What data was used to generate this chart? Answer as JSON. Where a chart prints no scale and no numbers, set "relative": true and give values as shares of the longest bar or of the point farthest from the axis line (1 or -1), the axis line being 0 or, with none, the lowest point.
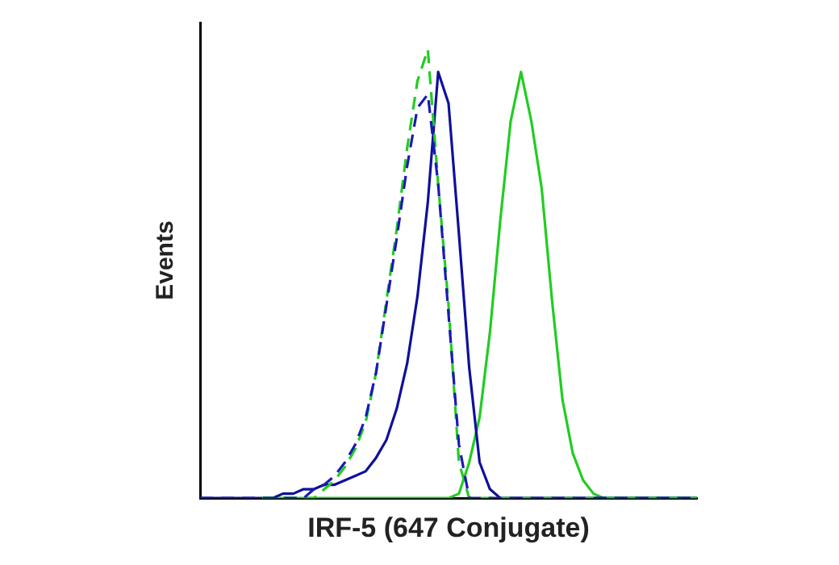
{
  "chart_data": {
    "type": "line",
    "relative": true,
    "xlabel": "IRF-5 (647 Conjugate)",
    "ylabel": "Events",
    "grid": false,
    "legend": false,
    "marker": "none",
    "categories": [
      null,
      null,
      null,
      null,
      null,
      null,
      null,
      null,
      null,
      null,
      null,
      null,
      null,
      null,
      null,
      null,
      null,
      null,
      null,
      null,
      null,
      null,
      null,
      null,
      null,
      null,
      null,
      null,
      null,
      null,
      null,
      null,
      null,
      null,
      null,
      null,
      null,
      null,
      null,
      null,
      null,
      null,
      null,
      null,
      null,
      null,
      null,
      null,
      null
    ],
    "series": [
      {
        "color": "#1a1ab4",
        "line_style": "dashed",
        "values": [
          0,
          0,
          0,
          0,
          0,
          0,
          0,
          0,
          0,
          0,
          0,
          0.02,
          0.03,
          0.05,
          0.08,
          0.12,
          0.18,
          0.28,
          0.43,
          0.58,
          0.74,
          0.87,
          0.9,
          0.7,
          0.41,
          0.12,
          0,
          0,
          0,
          0,
          0,
          0,
          0,
          0,
          0,
          0,
          0,
          0,
          0,
          0,
          0,
          0,
          0,
          0,
          0,
          0,
          0,
          0,
          0
        ]
      },
      {
        "color": "#22cc22",
        "line_style": "dashed",
        "values": [
          null,
          null,
          null,
          null,
          null,
          null,
          0,
          0,
          0,
          0,
          0,
          0,
          0.02,
          0.04,
          0.07,
          0.11,
          0.17,
          0.28,
          0.44,
          0.6,
          0.78,
          0.93,
          1,
          0.7,
          0.43,
          0.08,
          0,
          0,
          0,
          0,
          0,
          0,
          0,
          0,
          0,
          0,
          0,
          0,
          0,
          0,
          0,
          0,
          0,
          0,
          0,
          0,
          0,
          0,
          0
        ]
      },
      {
        "color": "#10109a",
        "line_style": "solid",
        "values": [
          0,
          0,
          0,
          0,
          0,
          0,
          0,
          0,
          0.01,
          0.01,
          0.02,
          0.02,
          0.03,
          0.03,
          0.04,
          0.05,
          0.06,
          0.09,
          0.13,
          0.2,
          0.3,
          0.45,
          0.66,
          0.95,
          0.88,
          0.59,
          0.29,
          0.08,
          0.02,
          0,
          0,
          0,
          0,
          0,
          0,
          0,
          0,
          0,
          0,
          0,
          0,
          0,
          0,
          0,
          0,
          0,
          0,
          0,
          0
        ]
      },
      {
        "color": "#22cc22",
        "line_style": "solid",
        "values": [
          null,
          null,
          null,
          null,
          null,
          null,
          0,
          0,
          0,
          0,
          0,
          0,
          0,
          0,
          0,
          0,
          0,
          0,
          0,
          0,
          0,
          0,
          0,
          0,
          0,
          0.01,
          0.08,
          0.18,
          0.37,
          0.62,
          0.84,
          0.95,
          0.84,
          0.69,
          0.44,
          0.22,
          0.1,
          0.04,
          0.01,
          0,
          0,
          0,
          0,
          0,
          0,
          0,
          0,
          0,
          0
        ]
      }
    ]
  }
}
